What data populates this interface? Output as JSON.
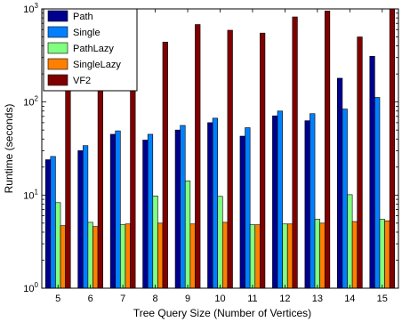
{
  "chart_data": {
    "type": "bar",
    "xlabel": "Tree Query Size (Number of Vertices)",
    "ylabel": "Runtime (seconds)",
    "yscale": "log",
    "ylim": [
      1,
      1000
    ],
    "y_ticks": [
      {
        "value": 1,
        "base": "10",
        "exp": "0"
      },
      {
        "value": 10,
        "base": "10",
        "exp": "1"
      },
      {
        "value": 100,
        "base": "10",
        "exp": "2"
      },
      {
        "value": 1000,
        "base": "10",
        "exp": "3"
      }
    ],
    "categories": [
      "5",
      "6",
      "7",
      "8",
      "9",
      "10",
      "11",
      "12",
      "13",
      "14",
      "15"
    ],
    "legend_position": "top-left",
    "series": [
      {
        "name": "Path",
        "color": "#00008f",
        "values": [
          24,
          30,
          45,
          39,
          50,
          60,
          43,
          71,
          63,
          180,
          310
        ]
      },
      {
        "name": "Single",
        "color": "#0080ff",
        "values": [
          26,
          34,
          49,
          45,
          56,
          67,
          53,
          80,
          75,
          84,
          112
        ]
      },
      {
        "name": "PathLazy",
        "color": "#80ff80",
        "values": [
          8.3,
          5.1,
          4.8,
          9.8,
          14.2,
          9.7,
          4.8,
          4.9,
          5.5,
          10.1,
          5.5
        ]
      },
      {
        "name": "SingleLazy",
        "color": "#ff8000",
        "values": [
          4.7,
          4.6,
          4.9,
          5.0,
          4.9,
          5.1,
          4.8,
          4.9,
          5.0,
          5.2,
          5.3
        ]
      },
      {
        "name": "VF2",
        "color": "#800000",
        "values": [
          150,
          150,
          150,
          440,
          680,
          590,
          550,
          820,
          950,
          500,
          1000
        ]
      }
    ]
  }
}
